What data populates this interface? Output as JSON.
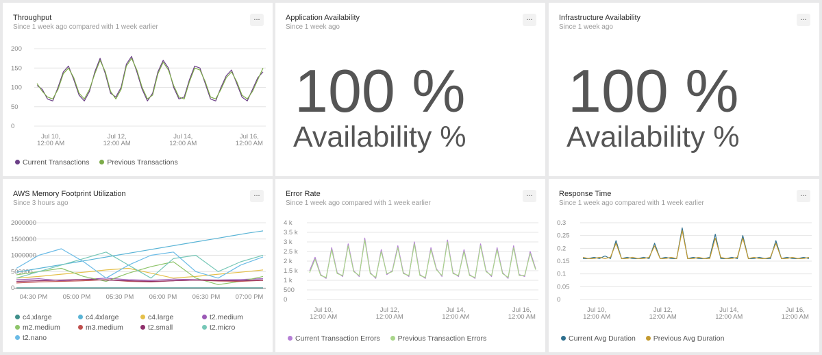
{
  "colors": {
    "purple": "#6b3f87",
    "green": "#7cab48",
    "lavender": "#b57fd6",
    "lightgreen": "#a9d58a",
    "teal": "#2e7a8f",
    "gold": "#c39a30",
    "text": "#555555"
  },
  "panels": {
    "throughput": {
      "title": "Throughput",
      "subtitle": "Since 1 week ago compared with 1 week earlier",
      "more": "...",
      "legend": [
        {
          "label": "Current Transactions",
          "color": "#6b3f87"
        },
        {
          "label": "Previous Transactions",
          "color": "#7cab48"
        }
      ]
    },
    "app_availability": {
      "title": "Application Availability",
      "subtitle": "Since 1 week ago",
      "more": "...",
      "value": "100 %",
      "label": "Availability %"
    },
    "infra_availability": {
      "title": "Infrastructure Availability",
      "subtitle": "Since 1 week ago",
      "more": "...",
      "value": "100 %",
      "label": "Availability %"
    },
    "aws_memory": {
      "title": "AWS Memory Footprint Utilization",
      "subtitle": "Since 3 hours ago",
      "more": "...",
      "legend": [
        {
          "label": "c4.xlarge",
          "color": "#3f8f8a"
        },
        {
          "label": "c4.4xlarge",
          "color": "#5ab4d6"
        },
        {
          "label": "c4.large",
          "color": "#e5c04a"
        },
        {
          "label": "t2.medium",
          "color": "#9b59b6"
        },
        {
          "label": "m2.medium",
          "color": "#8ec46a"
        },
        {
          "label": "m3.medium",
          "color": "#c0504d"
        },
        {
          "label": "t2.small",
          "color": "#8e2f6b"
        },
        {
          "label": "t2.micro",
          "color": "#76c7b7"
        },
        {
          "label": "t2.nano",
          "color": "#6bbbe6"
        }
      ]
    },
    "error_rate": {
      "title": "Error Rate",
      "subtitle": "Since 1 week ago compared with 1 week earlier",
      "more": "...",
      "legend": [
        {
          "label": "Current Transaction Errors",
          "color": "#b57fd6"
        },
        {
          "label": "Previous Transaction Errors",
          "color": "#a9d58a"
        }
      ]
    },
    "response_time": {
      "title": "Response Time",
      "subtitle": "Since 1 week ago compared with 1 week earlier",
      "more": "...",
      "legend": [
        {
          "label": "Current Avg Duration",
          "color": "#2e6f8e"
        },
        {
          "label": "Previous Avg Duration",
          "color": "#c39a30"
        }
      ]
    }
  },
  "chart_data": [
    {
      "id": "throughput",
      "type": "line",
      "title": "Throughput",
      "xlabel": "",
      "ylabel": "",
      "ylim": [
        0,
        200
      ],
      "yticks": [
        "0",
        "50",
        "100",
        "150",
        "200"
      ],
      "xticks": [
        {
          "line1": "Jul 10,",
          "line2": "12:00 AM",
          "x": 0.5
        },
        {
          "line1": "Jul 12,",
          "line2": "12:00 AM",
          "x": 2.5
        },
        {
          "line1": "Jul 14,",
          "line2": "12:00 AM",
          "x": 4.5
        },
        {
          "line1": "Jul 16,",
          "line2": "12:00 AM",
          "x": 6.5
        }
      ],
      "xlim": [
        0,
        7
      ],
      "series": [
        {
          "name": "Current Transactions",
          "color": "#6b3f87",
          "values": [
            105,
            95,
            70,
            65,
            100,
            140,
            155,
            120,
            80,
            65,
            90,
            140,
            175,
            135,
            85,
            75,
            100,
            160,
            180,
            140,
            95,
            65,
            85,
            140,
            170,
            150,
            100,
            70,
            75,
            120,
            155,
            150,
            110,
            70,
            65,
            100,
            130,
            145,
            110,
            75,
            65,
            95,
            125,
            140
          ]
        },
        {
          "name": "Previous Transactions",
          "color": "#7cab48",
          "values": [
            110,
            90,
            75,
            70,
            95,
            135,
            150,
            125,
            85,
            70,
            95,
            135,
            170,
            140,
            90,
            70,
            95,
            155,
            175,
            145,
            100,
            70,
            80,
            135,
            165,
            145,
            105,
            75,
            70,
            115,
            150,
            145,
            115,
            75,
            70,
            95,
            125,
            140,
            115,
            80,
            70,
            90,
            120,
            150
          ]
        }
      ]
    },
    {
      "id": "aws_memory",
      "type": "line",
      "title": "AWS Memory Footprint Utilization",
      "xlabel": "",
      "ylabel": "",
      "ylim": [
        0,
        2000000
      ],
      "yticks": [
        "0",
        "500000",
        "1000000",
        "1500000",
        "2000000"
      ],
      "xticks": [
        "04:30 PM",
        "05:00 PM",
        "05:30 PM",
        "06:00 PM",
        "06:30 PM",
        "07:00 PM"
      ],
      "series": [
        {
          "name": "c4.xlarge",
          "color": "#3f8f8a",
          "values": [
            0,
            0,
            0,
            0,
            0,
            0,
            0,
            0,
            0,
            0,
            0,
            0
          ]
        },
        {
          "name": "c4.4xlarge",
          "color": "#5ab4d6",
          "values": [
            480000,
            560000,
            640000,
            720000,
            800000,
            880000,
            960000,
            1040000,
            1120000,
            1200000,
            1280000,
            1360000,
            1440000,
            1520000,
            1600000,
            1680000,
            1750000
          ]
        },
        {
          "name": "c4.large",
          "color": "#e5c04a",
          "values": [
            300000,
            350000,
            420000,
            480000,
            550000,
            600000,
            450000,
            300000,
            350000,
            420000,
            480000,
            550000
          ]
        },
        {
          "name": "t2.medium",
          "color": "#9b59b6",
          "values": [
            250000,
            280000,
            220000,
            260000,
            300000,
            250000,
            230000,
            270000,
            250000,
            240000,
            260000,
            280000
          ]
        },
        {
          "name": "m2.medium",
          "color": "#8ec46a",
          "values": [
            400000,
            500000,
            600000,
            350000,
            200000,
            450000,
            650000,
            800000,
            300000,
            100000,
            200000,
            350000
          ]
        },
        {
          "name": "m3.medium",
          "color": "#c0504d",
          "values": [
            150000,
            180000,
            200000,
            220000,
            250000,
            200000,
            180000,
            220000,
            240000,
            210000,
            200000,
            230000
          ]
        },
        {
          "name": "t2.small",
          "color": "#8e2f6b",
          "values": [
            200000,
            220000,
            240000,
            260000,
            240000,
            220000,
            200000,
            220000,
            240000,
            230000,
            220000,
            240000
          ]
        },
        {
          "name": "t2.micro",
          "color": "#76c7b7",
          "values": [
            300000,
            500000,
            700000,
            900000,
            1100000,
            700000,
            300000,
            900000,
            1000000,
            500000,
            800000,
            1000000
          ]
        },
        {
          "name": "t2.nano",
          "color": "#6bbbe6",
          "values": [
            600000,
            1000000,
            1200000,
            800000,
            300000,
            700000,
            1000000,
            1100000,
            500000,
            300000,
            700000,
            950000
          ]
        }
      ]
    },
    {
      "id": "error_rate",
      "type": "line",
      "title": "Error Rate",
      "xlabel": "",
      "ylabel": "",
      "ylim": [
        0,
        4000
      ],
      "yticks": [
        "0",
        "500",
        "1 k",
        "1.5 k",
        "2 k",
        "2.5 k",
        "3 k",
        "3.5 k",
        "4 k"
      ],
      "xticks": [
        {
          "line1": "Jul 10,",
          "line2": "12:00 AM",
          "x": 0.5
        },
        {
          "line1": "Jul 12,",
          "line2": "12:00 AM",
          "x": 2.5
        },
        {
          "line1": "Jul 14,",
          "line2": "12:00 AM",
          "x": 4.5
        },
        {
          "line1": "Jul 16,",
          "line2": "12:00 AM",
          "x": 6.5
        }
      ],
      "xlim": [
        0,
        7
      ],
      "series": [
        {
          "name": "Current Transaction Errors",
          "color": "#b57fd6",
          "values": [
            1500,
            2200,
            1300,
            1100,
            2700,
            1400,
            1200,
            2900,
            1500,
            1200,
            3200,
            1400,
            1100,
            2600,
            1300,
            1500,
            2800,
            1400,
            1200,
            3000,
            1300,
            1100,
            2700,
            1600,
            1200,
            3100,
            1400,
            1200,
            2600,
            1300,
            1100,
            2900,
            1500,
            1200,
            2700,
            1400,
            1100,
            2800,
            1300,
            1200,
            2500,
            1600
          ]
        },
        {
          "name": "Previous Transaction Errors",
          "color": "#a9d58a",
          "values": [
            1400,
            2100,
            1250,
            1150,
            2600,
            1350,
            1250,
            2800,
            1450,
            1250,
            3100,
            1350,
            1150,
            2500,
            1350,
            1450,
            2700,
            1350,
            1250,
            2900,
            1250,
            1150,
            2600,
            1550,
            1250,
            3000,
            1350,
            1250,
            2500,
            1250,
            1150,
            2800,
            1450,
            1250,
            2600,
            1350,
            1150,
            2700,
            1250,
            1250,
            2400,
            1550
          ]
        }
      ]
    },
    {
      "id": "response_time",
      "type": "line",
      "title": "Response Time",
      "xlabel": "",
      "ylabel": "",
      "ylim": [
        0,
        0.3
      ],
      "yticks": [
        "0",
        "0.05",
        "0.1",
        "0.15",
        "0.2",
        "0.25",
        "0.3"
      ],
      "xticks": [
        {
          "line1": "Jul 10,",
          "line2": "12:00 AM",
          "x": 0.5
        },
        {
          "line1": "Jul 12,",
          "line2": "12:00 AM",
          "x": 2.5
        },
        {
          "line1": "Jul 14,",
          "line2": "12:00 AM",
          "x": 4.5
        },
        {
          "line1": "Jul 16,",
          "line2": "12:00 AM",
          "x": 6.5
        }
      ],
      "xlim": [
        0,
        7
      ],
      "series": [
        {
          "name": "Current Avg Duration",
          "color": "#2e6f8e",
          "values": [
            0.16,
            0.16,
            0.165,
            0.16,
            0.17,
            0.16,
            0.23,
            0.16,
            0.165,
            0.16,
            0.16,
            0.165,
            0.16,
            0.22,
            0.16,
            0.165,
            0.16,
            0.16,
            0.28,
            0.16,
            0.165,
            0.16,
            0.16,
            0.165,
            0.255,
            0.16,
            0.16,
            0.165,
            0.16,
            0.25,
            0.16,
            0.16,
            0.165,
            0.16,
            0.16,
            0.23,
            0.16,
            0.165,
            0.16,
            0.16,
            0.165,
            0.16
          ]
        },
        {
          "name": "Previous Avg Duration",
          "color": "#c39a30",
          "values": [
            0.165,
            0.16,
            0.16,
            0.165,
            0.16,
            0.165,
            0.22,
            0.16,
            0.16,
            0.165,
            0.16,
            0.16,
            0.165,
            0.21,
            0.16,
            0.16,
            0.165,
            0.16,
            0.27,
            0.16,
            0.16,
            0.165,
            0.16,
            0.16,
            0.24,
            0.165,
            0.16,
            0.16,
            0.165,
            0.24,
            0.16,
            0.165,
            0.16,
            0.16,
            0.165,
            0.22,
            0.16,
            0.16,
            0.165,
            0.16,
            0.16,
            0.165
          ]
        }
      ]
    }
  ]
}
